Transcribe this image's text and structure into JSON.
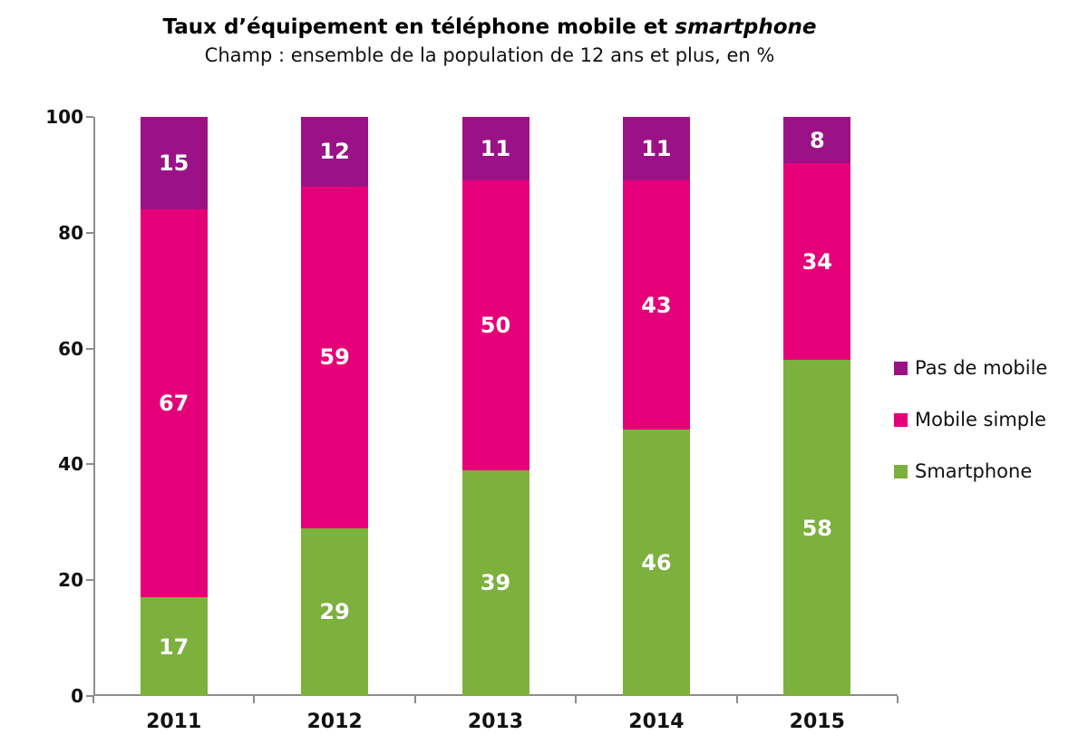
{
  "header": {
    "title_main": "Taux d’équipement en téléphone mobile et",
    "title_italic": "smartphone",
    "subtitle": "Champ : ensemble de la population de 12 ans et plus, en %"
  },
  "colors": {
    "smartphone": "#7DB13E",
    "mobile_simple": "#E50079",
    "pas_de_mobile": "#9B1287",
    "axis": "#8C8C8C",
    "value_label": "#FFFFFF",
    "text": "#111111"
  },
  "chart_data": {
    "type": "bar",
    "stacked": true,
    "title": "Taux d’équipement en téléphone mobile et smartphone",
    "subtitle": "Champ : ensemble de la population de 12 ans et plus, en %",
    "categories": [
      "2011",
      "2012",
      "2013",
      "2014",
      "2015"
    ],
    "series": [
      {
        "name": "Smartphone",
        "color": "#7DB13E",
        "values": [
          17,
          29,
          39,
          46,
          58
        ]
      },
      {
        "name": "Mobile simple",
        "color": "#E50079",
        "values": [
          67,
          59,
          50,
          43,
          34
        ]
      },
      {
        "name": "Pas de mobile",
        "color": "#9B1287",
        "values": [
          15,
          12,
          11,
          11,
          8
        ]
      }
    ],
    "xlabel": "",
    "ylabel": "",
    "ylim": [
      0,
      100
    ],
    "yticks": [
      0,
      20,
      40,
      60,
      80,
      100
    ],
    "grid": false,
    "legend_position": "right",
    "legend_order": [
      "Pas de mobile",
      "Mobile simple",
      "Smartphone"
    ]
  }
}
